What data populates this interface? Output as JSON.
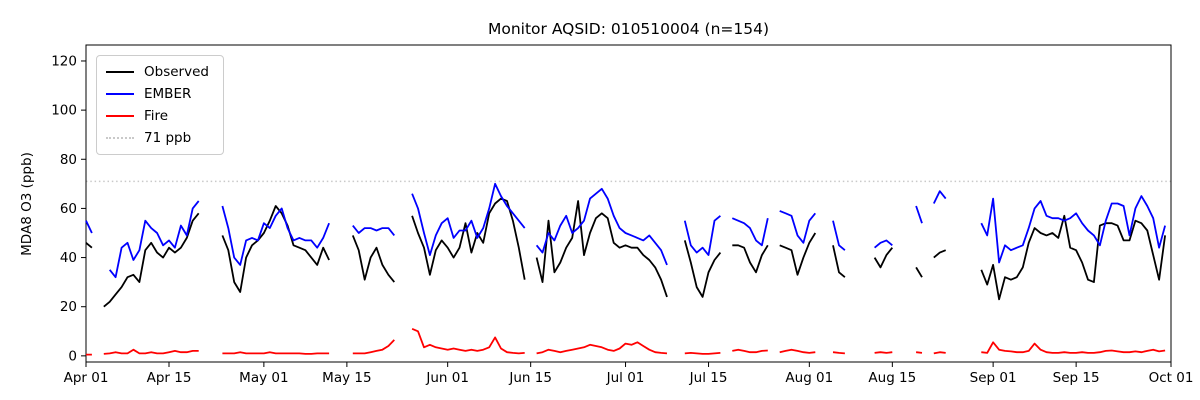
{
  "figure": {
    "title": "Monitor AQSID: 010510004 (n=154)",
    "ylabel": "MDA8 O3 (ppb)"
  },
  "legend": {
    "items": [
      {
        "label": "Observed",
        "color": "#000000",
        "style": "solid"
      },
      {
        "label": "EMBER",
        "color": "#0000ff",
        "style": "solid"
      },
      {
        "label": "Fire",
        "color": "#ff0000",
        "style": "solid"
      },
      {
        "label": "71 ppb",
        "color": "#c9c9c9",
        "style": "dotted"
      }
    ]
  },
  "chart_data": {
    "type": "line",
    "title": "Monitor AQSID: 010510004 (n=154)",
    "xlabel": "",
    "ylabel": "MDA8 O3 (ppb)",
    "x_start": "Apr 01",
    "x_end": "Oct 01",
    "x_unit": "day",
    "n_observed": 154,
    "ylim": [
      -2.5,
      126.5
    ],
    "yticks": [
      0,
      20,
      40,
      60,
      80,
      100,
      120
    ],
    "xticks": [
      {
        "day": 0,
        "label": "Apr 01"
      },
      {
        "day": 14,
        "label": "Apr 15"
      },
      {
        "day": 30,
        "label": "May 01"
      },
      {
        "day": 44,
        "label": "May 15"
      },
      {
        "day": 61,
        "label": "Jun 01"
      },
      {
        "day": 75,
        "label": "Jun 15"
      },
      {
        "day": 91,
        "label": "Jul 01"
      },
      {
        "day": 105,
        "label": "Jul 15"
      },
      {
        "day": 122,
        "label": "Aug 01"
      },
      {
        "day": 136,
        "label": "Aug 15"
      },
      {
        "day": 153,
        "label": "Sep 01"
      },
      {
        "day": 167,
        "label": "Sep 15"
      },
      {
        "day": 183,
        "label": "Oct 01"
      }
    ],
    "ref_line": {
      "value": 71,
      "label": "71 ppb",
      "color": "#c9c9c9",
      "style": "dotted"
    },
    "grid": false,
    "legend_position": "upper left",
    "series": [
      {
        "name": "Observed",
        "color": "#000000",
        "values": [
          46,
          44,
          null,
          20,
          22,
          25,
          28,
          32,
          33,
          30,
          43,
          46,
          42,
          40,
          44,
          42,
          44,
          48,
          55,
          58,
          null,
          null,
          null,
          49,
          43,
          30,
          26,
          40,
          45,
          47,
          50,
          55,
          61,
          58,
          53,
          45,
          44,
          43,
          40,
          37,
          44,
          39,
          null,
          null,
          null,
          49,
          43,
          31,
          40,
          44,
          37,
          33,
          30,
          null,
          null,
          57,
          50,
          44,
          33,
          43,
          47,
          44,
          40,
          44,
          54,
          42,
          50,
          46,
          58,
          62,
          64,
          63,
          55,
          44,
          31,
          null,
          40,
          30,
          55,
          34,
          38,
          44,
          48,
          63,
          41,
          50,
          56,
          58,
          56,
          46,
          44,
          45,
          44,
          44,
          41,
          39,
          36,
          31,
          24,
          null,
          null,
          47,
          38,
          28,
          24,
          34,
          39,
          42,
          null,
          45,
          45,
          44,
          38,
          34,
          41,
          45,
          null,
          45,
          44,
          43,
          33,
          40,
          46,
          50,
          null,
          null,
          45,
          34,
          32,
          null,
          null,
          null,
          null,
          40,
          36,
          41,
          44,
          null,
          null,
          null,
          36,
          32,
          null,
          40,
          42,
          43,
          null,
          null,
          null,
          null,
          null,
          35,
          29,
          37,
          23,
          32,
          31,
          32,
          36,
          46,
          52,
          50,
          49,
          50,
          48,
          57,
          44,
          43,
          38,
          31,
          30,
          53,
          54,
          54,
          53,
          47,
          47,
          55,
          54,
          51,
          41,
          31,
          49,
          null
        ]
      },
      {
        "name": "EMBER",
        "color": "#0000ff",
        "values": [
          55,
          50,
          null,
          null,
          35,
          32,
          44,
          46,
          39,
          43,
          55,
          52,
          50,
          45,
          47,
          44,
          53,
          49,
          60,
          63,
          null,
          null,
          null,
          61,
          52,
          40,
          37,
          47,
          48,
          47,
          54,
          52,
          57,
          60,
          52,
          47,
          48,
          47,
          47,
          44,
          48,
          54,
          null,
          null,
          null,
          53,
          50,
          52,
          52,
          51,
          52,
          52,
          49,
          null,
          null,
          66,
          60,
          50,
          41,
          49,
          54,
          56,
          48,
          51,
          51,
          55,
          48,
          52,
          60,
          70,
          65,
          61,
          58,
          55,
          52,
          null,
          45,
          42,
          50,
          47,
          53,
          57,
          50,
          52,
          55,
          64,
          66,
          68,
          64,
          57,
          52,
          50,
          49,
          48,
          47,
          49,
          46,
          43,
          37,
          null,
          null,
          55,
          45,
          42,
          44,
          41,
          55,
          57,
          null,
          56,
          55,
          54,
          52,
          47,
          45,
          56,
          null,
          59,
          58,
          57,
          49,
          46,
          55,
          58,
          null,
          null,
          55,
          45,
          43,
          null,
          null,
          null,
          null,
          44,
          46,
          47,
          45,
          null,
          null,
          null,
          61,
          54,
          null,
          62,
          67,
          64,
          null,
          null,
          null,
          null,
          null,
          54,
          49,
          64,
          38,
          45,
          43,
          44,
          45,
          52,
          60,
          63,
          57,
          56,
          56,
          55,
          56,
          58,
          54,
          51,
          49,
          45,
          55,
          62,
          62,
          61,
          49,
          60,
          65,
          61,
          56,
          44,
          53,
          null
        ]
      },
      {
        "name": "Fire",
        "color": "#ff0000",
        "values": [
          0.5,
          0.5,
          null,
          0.8,
          1,
          1.5,
          1,
          1,
          2.5,
          1,
          1,
          1.5,
          1,
          1,
          1.5,
          2,
          1.5,
          1.5,
          2,
          2,
          null,
          null,
          null,
          1,
          1,
          1,
          1.5,
          1,
          1,
          1,
          1,
          1.5,
          1,
          1,
          1,
          1,
          1,
          0.8,
          0.8,
          1,
          1,
          1,
          null,
          null,
          null,
          1,
          1,
          1,
          1.5,
          2,
          2.5,
          4,
          6.5,
          null,
          null,
          11,
          10,
          3.5,
          4.5,
          3.5,
          3,
          2.5,
          3,
          2.5,
          2,
          2.5,
          2,
          2.5,
          3.5,
          7.5,
          3,
          1.5,
          1.2,
          1,
          1.2,
          null,
          1,
          1.5,
          2.5,
          2,
          1.5,
          2,
          2.5,
          3,
          3.5,
          4.5,
          4,
          3.5,
          2.5,
          2,
          3,
          5,
          4.5,
          5.5,
          4,
          2.5,
          1.5,
          1.2,
          1,
          null,
          null,
          1,
          1.2,
          1,
          0.8,
          0.8,
          1,
          1.2,
          null,
          2,
          2.5,
          2,
          1.5,
          1.5,
          2,
          2.2,
          null,
          1.5,
          2,
          2.5,
          2,
          1.5,
          1.2,
          1.5,
          null,
          null,
          1.5,
          1.2,
          1,
          null,
          null,
          null,
          null,
          1.2,
          1.5,
          1.2,
          1.5,
          null,
          null,
          null,
          1.5,
          1.2,
          null,
          1,
          1.5,
          1.2,
          null,
          null,
          null,
          null,
          null,
          1.5,
          1.2,
          5.5,
          2.5,
          2,
          1.8,
          1.5,
          1.5,
          2,
          5,
          2.5,
          1.5,
          1.2,
          1.2,
          1.5,
          1.2,
          1.2,
          1.5,
          1.2,
          1.2,
          1.5,
          2,
          2.2,
          1.8,
          1.5,
          1.5,
          1.8,
          1.5,
          2,
          2.5,
          1.8,
          2.2,
          null
        ]
      }
    ]
  }
}
